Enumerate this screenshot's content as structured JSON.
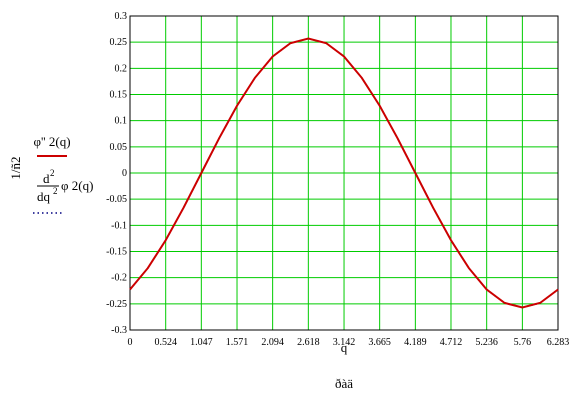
{
  "chart_data": {
    "type": "line",
    "y_label": "1/ñ2",
    "x_label": "q",
    "x_sublabel": "ðàä",
    "x": [
      0,
      0.2618,
      0.5236,
      0.7854,
      1.0472,
      1.309,
      1.5708,
      1.8326,
      2.0944,
      2.3562,
      2.618,
      2.8798,
      3.1416,
      3.4034,
      3.6652,
      3.927,
      4.1888,
      4.4506,
      4.7124,
      4.9742,
      5.236,
      5.4978,
      5.7596,
      6.0214,
      6.2832
    ],
    "series": [
      {
        "name": "φ'' 2(q)",
        "color": "#cc0000",
        "values": [
          -0.2226,
          -0.1817,
          -0.1285,
          -0.0665,
          0,
          0.0665,
          0.1285,
          0.1817,
          0.2226,
          0.2482,
          0.257,
          0.2482,
          0.2226,
          0.1817,
          0.1285,
          0.0665,
          0,
          -0.0665,
          -0.1285,
          -0.1817,
          -0.2226,
          -0.2482,
          -0.257,
          -0.2482,
          -0.2226
        ]
      },
      {
        "legend_label": {
          "numerator": "d",
          "numerator_exp": "2",
          "denominator": "dq",
          "denominator_exp": "2",
          "function": "φ 2(q)"
        },
        "color": "#000080",
        "values": [
          -0.2226,
          -0.1817,
          -0.1285,
          -0.0665,
          0,
          0.0665,
          0.1285,
          0.1817,
          0.2226,
          0.2482,
          0.257,
          0.2482,
          0.2226,
          0.1817,
          0.1285,
          0.0665,
          0,
          -0.0665,
          -0.1285,
          -0.1817,
          -0.2226,
          -0.2482,
          -0.257,
          -0.2482,
          -0.2226
        ]
      }
    ],
    "xlim": [
      0,
      6.283
    ],
    "xticks": [
      0,
      0.524,
      1.047,
      1.571,
      2.094,
      2.618,
      3.142,
      3.665,
      4.189,
      4.712,
      5.236,
      5.76,
      6.283
    ],
    "ylim": [
      -0.3,
      0.3
    ],
    "yticks": [
      -0.3,
      -0.25,
      -0.2,
      -0.15,
      -0.1,
      -0.05,
      0,
      0.05,
      0.1,
      0.15,
      0.2,
      0.25,
      0.3
    ],
    "grid": true,
    "grid_color": "#00cc00"
  }
}
